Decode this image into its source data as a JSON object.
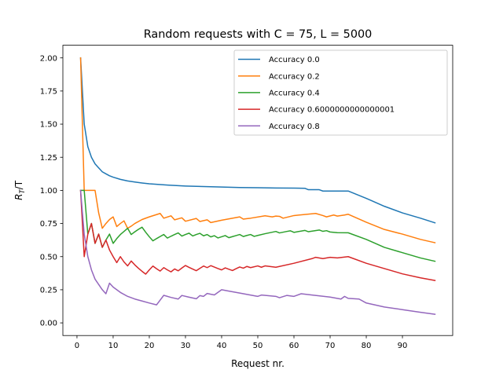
{
  "chart_data": {
    "type": "line",
    "title": "Random requests with C = 75, L = 5000",
    "xlabel": "Request nr.",
    "ylabel_math": {
      "base": "R",
      "sub": "T",
      "rest": "/T"
    },
    "xlim": [
      -3.9,
      103.9
    ],
    "ylim": [
      -0.0955,
      2.0955
    ],
    "xticks": [
      0,
      10,
      20,
      30,
      40,
      50,
      60,
      70,
      80,
      90
    ],
    "xtick_labels": [
      "0",
      "10",
      "20",
      "30",
      "40",
      "50",
      "60",
      "70",
      "80",
      "90"
    ],
    "yticks": [
      0.0,
      0.25,
      0.5,
      0.75,
      1.0,
      1.25,
      1.5,
      1.75,
      2.0
    ],
    "ytick_labels": [
      "0.00",
      "0.25",
      "0.50",
      "0.75",
      "1.00",
      "1.25",
      "1.50",
      "1.75",
      "2.00"
    ],
    "grid": false,
    "legend_position": "upper right",
    "series": [
      {
        "name": "Accuracy 0.0",
        "color": "#1f77b4",
        "points": [
          [
            1,
            2.0
          ],
          [
            2,
            1.5
          ],
          [
            3,
            1.33
          ],
          [
            4,
            1.25
          ],
          [
            5,
            1.2
          ],
          [
            6,
            1.17
          ],
          [
            7,
            1.14
          ],
          [
            8,
            1.125
          ],
          [
            9,
            1.11
          ],
          [
            10,
            1.1
          ],
          [
            12,
            1.083
          ],
          [
            14,
            1.071
          ],
          [
            16,
            1.063
          ],
          [
            18,
            1.056
          ],
          [
            20,
            1.05
          ],
          [
            25,
            1.04
          ],
          [
            30,
            1.033
          ],
          [
            35,
            1.029
          ],
          [
            40,
            1.025
          ],
          [
            45,
            1.022
          ],
          [
            50,
            1.02
          ],
          [
            55,
            1.018
          ],
          [
            60,
            1.017
          ],
          [
            63,
            1.016
          ],
          [
            64,
            1.005
          ],
          [
            67,
            1.005
          ],
          [
            68,
            0.995
          ],
          [
            75,
            0.995
          ],
          [
            80,
            0.94
          ],
          [
            85,
            0.88
          ],
          [
            90,
            0.83
          ],
          [
            95,
            0.79
          ],
          [
            99,
            0.755
          ]
        ]
      },
      {
        "name": "Accuracy 0.2",
        "color": "#ff7f0e",
        "points": [
          [
            1,
            2.0
          ],
          [
            2,
            1.0
          ],
          [
            3,
            1.0
          ],
          [
            4,
            1.0
          ],
          [
            5,
            1.0
          ],
          [
            6,
            0.83
          ],
          [
            7,
            0.714
          ],
          [
            8,
            0.75
          ],
          [
            9,
            0.78
          ],
          [
            10,
            0.8
          ],
          [
            11,
            0.727
          ],
          [
            12,
            0.75
          ],
          [
            13,
            0.77
          ],
          [
            14,
            0.714
          ],
          [
            15,
            0.73
          ],
          [
            16,
            0.75
          ],
          [
            18,
            0.78
          ],
          [
            20,
            0.8
          ],
          [
            23,
            0.826
          ],
          [
            24,
            0.79
          ],
          [
            26,
            0.808
          ],
          [
            27,
            0.778
          ],
          [
            29,
            0.793
          ],
          [
            30,
            0.767
          ],
          [
            33,
            0.788
          ],
          [
            34,
            0.765
          ],
          [
            36,
            0.778
          ],
          [
            37,
            0.757
          ],
          [
            40,
            0.775
          ],
          [
            44,
            0.795
          ],
          [
            45,
            0.8
          ],
          [
            46,
            0.783
          ],
          [
            47,
            0.787
          ],
          [
            48,
            0.79
          ],
          [
            52,
            0.808
          ],
          [
            54,
            0.8
          ],
          [
            55,
            0.806
          ],
          [
            56,
            0.804
          ],
          [
            57,
            0.79
          ],
          [
            60,
            0.81
          ],
          [
            66,
            0.826
          ],
          [
            68,
            0.81
          ],
          [
            69,
            0.8
          ],
          [
            71,
            0.814
          ],
          [
            72,
            0.806
          ],
          [
            74,
            0.814
          ],
          [
            75,
            0.82
          ],
          [
            80,
            0.76
          ],
          [
            85,
            0.705
          ],
          [
            90,
            0.67
          ],
          [
            95,
            0.63
          ],
          [
            99,
            0.605
          ]
        ]
      },
      {
        "name": "Accuracy 0.4",
        "color": "#2ca02c",
        "points": [
          [
            1,
            1.0
          ],
          [
            2,
            1.0
          ],
          [
            3,
            0.67
          ],
          [
            4,
            0.75
          ],
          [
            5,
            0.6
          ],
          [
            6,
            0.67
          ],
          [
            7,
            0.57
          ],
          [
            8,
            0.625
          ],
          [
            9,
            0.67
          ],
          [
            10,
            0.6
          ],
          [
            11,
            0.636
          ],
          [
            12,
            0.667
          ],
          [
            13,
            0.69
          ],
          [
            14,
            0.714
          ],
          [
            15,
            0.667
          ],
          [
            16,
            0.6875
          ],
          [
            17,
            0.706
          ],
          [
            18,
            0.722
          ],
          [
            19,
            0.684
          ],
          [
            20,
            0.65
          ],
          [
            21,
            0.619
          ],
          [
            22,
            0.636
          ],
          [
            23,
            0.652
          ],
          [
            24,
            0.667
          ],
          [
            25,
            0.64
          ],
          [
            26,
            0.654
          ],
          [
            27,
            0.667
          ],
          [
            28,
            0.679
          ],
          [
            29,
            0.655
          ],
          [
            30,
            0.667
          ],
          [
            31,
            0.677
          ],
          [
            32,
            0.656
          ],
          [
            33,
            0.667
          ],
          [
            34,
            0.676
          ],
          [
            35,
            0.657
          ],
          [
            36,
            0.667
          ],
          [
            37,
            0.649
          ],
          [
            38,
            0.658
          ],
          [
            39,
            0.641
          ],
          [
            40,
            0.65
          ],
          [
            41,
            0.659
          ],
          [
            42,
            0.643
          ],
          [
            43,
            0.651
          ],
          [
            44,
            0.659
          ],
          [
            45,
            0.667
          ],
          [
            46,
            0.652
          ],
          [
            47,
            0.66
          ],
          [
            48,
            0.667
          ],
          [
            49,
            0.653
          ],
          [
            50,
            0.66
          ],
          [
            52,
            0.673
          ],
          [
            55,
            0.69
          ],
          [
            56,
            0.679
          ],
          [
            58,
            0.69
          ],
          [
            59,
            0.695
          ],
          [
            60,
            0.683
          ],
          [
            63,
            0.698
          ],
          [
            64,
            0.688
          ],
          [
            67,
            0.701
          ],
          [
            68,
            0.691
          ],
          [
            69,
            0.696
          ],
          [
            70,
            0.686
          ],
          [
            72,
            0.681
          ],
          [
            75,
            0.68
          ],
          [
            80,
            0.63
          ],
          [
            85,
            0.57
          ],
          [
            90,
            0.53
          ],
          [
            95,
            0.49
          ],
          [
            99,
            0.465
          ]
        ]
      },
      {
        "name": "Accuracy 0.6000000000000001",
        "color": "#d62728",
        "points": [
          [
            1,
            1.0
          ],
          [
            2,
            0.5
          ],
          [
            3,
            0.67
          ],
          [
            4,
            0.75
          ],
          [
            5,
            0.6
          ],
          [
            6,
            0.67
          ],
          [
            7,
            0.57
          ],
          [
            8,
            0.625
          ],
          [
            9,
            0.55
          ],
          [
            10,
            0.5
          ],
          [
            11,
            0.455
          ],
          [
            12,
            0.5
          ],
          [
            13,
            0.46
          ],
          [
            14,
            0.43
          ],
          [
            15,
            0.467
          ],
          [
            16,
            0.4375
          ],
          [
            17,
            0.412
          ],
          [
            18,
            0.389
          ],
          [
            19,
            0.368
          ],
          [
            20,
            0.4
          ],
          [
            21,
            0.429
          ],
          [
            22,
            0.409
          ],
          [
            23,
            0.391
          ],
          [
            24,
            0.417
          ],
          [
            25,
            0.4
          ],
          [
            26,
            0.385
          ],
          [
            27,
            0.407
          ],
          [
            28,
            0.393
          ],
          [
            29,
            0.414
          ],
          [
            30,
            0.433
          ],
          [
            31,
            0.419
          ],
          [
            32,
            0.406
          ],
          [
            33,
            0.394
          ],
          [
            34,
            0.412
          ],
          [
            35,
            0.429
          ],
          [
            36,
            0.417
          ],
          [
            37,
            0.432
          ],
          [
            38,
            0.421
          ],
          [
            39,
            0.41
          ],
          [
            40,
            0.4
          ],
          [
            41,
            0.415
          ],
          [
            42,
            0.405
          ],
          [
            43,
            0.395
          ],
          [
            44,
            0.409
          ],
          [
            45,
            0.422
          ],
          [
            46,
            0.413
          ],
          [
            47,
            0.426
          ],
          [
            48,
            0.417
          ],
          [
            50,
            0.43
          ],
          [
            51,
            0.42
          ],
          [
            52,
            0.43
          ],
          [
            55,
            0.42
          ],
          [
            60,
            0.45
          ],
          [
            65,
            0.485
          ],
          [
            66,
            0.495
          ],
          [
            68,
            0.485
          ],
          [
            70,
            0.495
          ],
          [
            72,
            0.49
          ],
          [
            75,
            0.5
          ],
          [
            80,
            0.45
          ],
          [
            85,
            0.41
          ],
          [
            90,
            0.37
          ],
          [
            95,
            0.34
          ],
          [
            99,
            0.32
          ]
        ]
      },
      {
        "name": "Accuracy 0.8",
        "color": "#9467bd",
        "points": [
          [
            1,
            1.0
          ],
          [
            2,
            0.67
          ],
          [
            3,
            0.5
          ],
          [
            4,
            0.4
          ],
          [
            5,
            0.33
          ],
          [
            6,
            0.29
          ],
          [
            7,
            0.25
          ],
          [
            8,
            0.22
          ],
          [
            9,
            0.3
          ],
          [
            10,
            0.27
          ],
          [
            12,
            0.23
          ],
          [
            14,
            0.2
          ],
          [
            16,
            0.18
          ],
          [
            18,
            0.165
          ],
          [
            20,
            0.15
          ],
          [
            22,
            0.136
          ],
          [
            24,
            0.208
          ],
          [
            26,
            0.192
          ],
          [
            28,
            0.18
          ],
          [
            29,
            0.207
          ],
          [
            31,
            0.194
          ],
          [
            33,
            0.182
          ],
          [
            34,
            0.206
          ],
          [
            35,
            0.2
          ],
          [
            36,
            0.222
          ],
          [
            37,
            0.216
          ],
          [
            38,
            0.211
          ],
          [
            40,
            0.25
          ],
          [
            42,
            0.24
          ],
          [
            45,
            0.225
          ],
          [
            50,
            0.2
          ],
          [
            51,
            0.21
          ],
          [
            55,
            0.2
          ],
          [
            56,
            0.19
          ],
          [
            58,
            0.207
          ],
          [
            60,
            0.2
          ],
          [
            62,
            0.22
          ],
          [
            65,
            0.21
          ],
          [
            70,
            0.195
          ],
          [
            73,
            0.18
          ],
          [
            74,
            0.2
          ],
          [
            75,
            0.185
          ],
          [
            78,
            0.18
          ],
          [
            80,
            0.15
          ],
          [
            85,
            0.12
          ],
          [
            90,
            0.1
          ],
          [
            95,
            0.08
          ],
          [
            99,
            0.065
          ]
        ]
      }
    ]
  }
}
